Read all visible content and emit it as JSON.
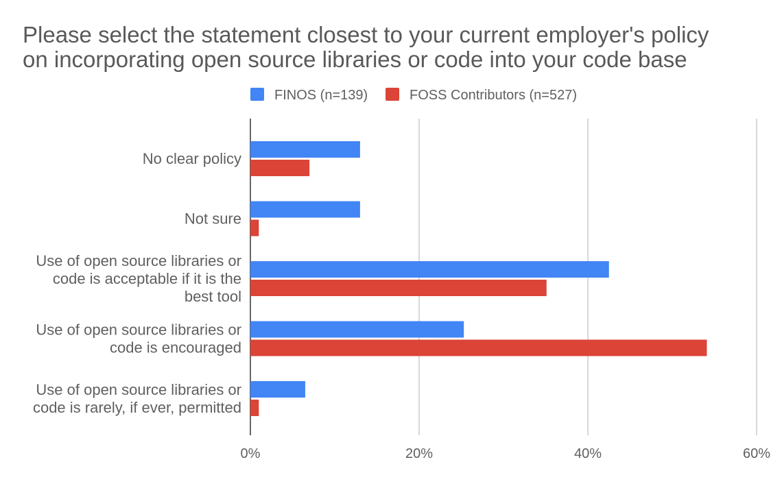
{
  "chart_data": {
    "type": "bar",
    "orientation": "horizontal",
    "title": [
      "Please select the statement closest to your current employer's policy",
      "on incorporating open source libraries or code into your code base"
    ],
    "categories": [
      [
        "No clear policy"
      ],
      [
        "Not sure"
      ],
      [
        "Use of open source libraries or",
        "code is acceptable if it is the",
        "best tool"
      ],
      [
        "Use of open source libraries or",
        "code is encouraged"
      ],
      [
        "Use of open source libraries or",
        "code is rarely, if ever, permitted"
      ]
    ],
    "series": [
      {
        "name": "FINOS (n=139)",
        "color": "#4285f4",
        "values": [
          13.0,
          13.0,
          42.5,
          25.3,
          6.5
        ]
      },
      {
        "name": "FOSS Contributors (n=527)",
        "color": "#db4437",
        "values": [
          7.0,
          1.0,
          35.1,
          54.1,
          1.0
        ]
      }
    ],
    "xlim": [
      0,
      60
    ],
    "xticks": [
      0,
      20,
      40,
      60
    ],
    "xtick_labels": [
      "0%",
      "20%",
      "40%",
      "60%"
    ],
    "grid": true,
    "legend_position": "top"
  }
}
